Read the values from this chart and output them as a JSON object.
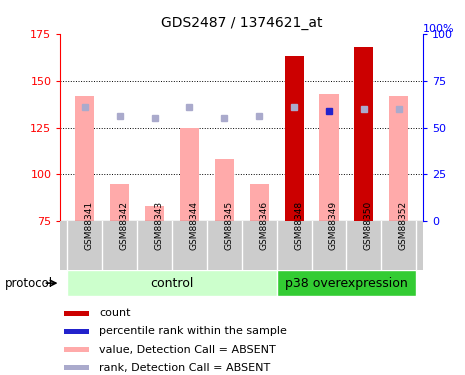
{
  "title": "GDS2487 / 1374621_at",
  "samples": [
    "GSM88341",
    "GSM88342",
    "GSM88343",
    "GSM88344",
    "GSM88345",
    "GSM88346",
    "GSM88348",
    "GSM88349",
    "GSM88350",
    "GSM88352"
  ],
  "value_absent": [
    142,
    95,
    83,
    125,
    108,
    95,
    null,
    143,
    null,
    142
  ],
  "rank_absent": [
    136,
    131,
    130,
    136,
    130,
    131,
    136,
    null,
    135,
    135
  ],
  "count_present": [
    null,
    null,
    null,
    null,
    null,
    null,
    163,
    null,
    168,
    null
  ],
  "rank_present": [
    null,
    null,
    null,
    null,
    null,
    null,
    null,
    134,
    null,
    null
  ],
  "ymin": 75,
  "ymax": 175,
  "yticks_left": [
    75,
    100,
    125,
    150,
    175
  ],
  "yticks_right": [
    0,
    25,
    50,
    75,
    100
  ],
  "color_count": "#cc0000",
  "color_rank_present": "#2222cc",
  "color_value_absent": "#ffaaaa",
  "color_rank_absent": "#aaaacc",
  "bg_label": "#cccccc",
  "bg_control": "#ccffcc",
  "bg_p38": "#33cc33",
  "bar_width": 0.55,
  "n_control": 6,
  "legend_items": [
    {
      "color": "#cc0000",
      "label": "count"
    },
    {
      "color": "#2222cc",
      "label": "percentile rank within the sample"
    },
    {
      "color": "#ffaaaa",
      "label": "value, Detection Call = ABSENT"
    },
    {
      "color": "#aaaacc",
      "label": "rank, Detection Call = ABSENT"
    }
  ]
}
